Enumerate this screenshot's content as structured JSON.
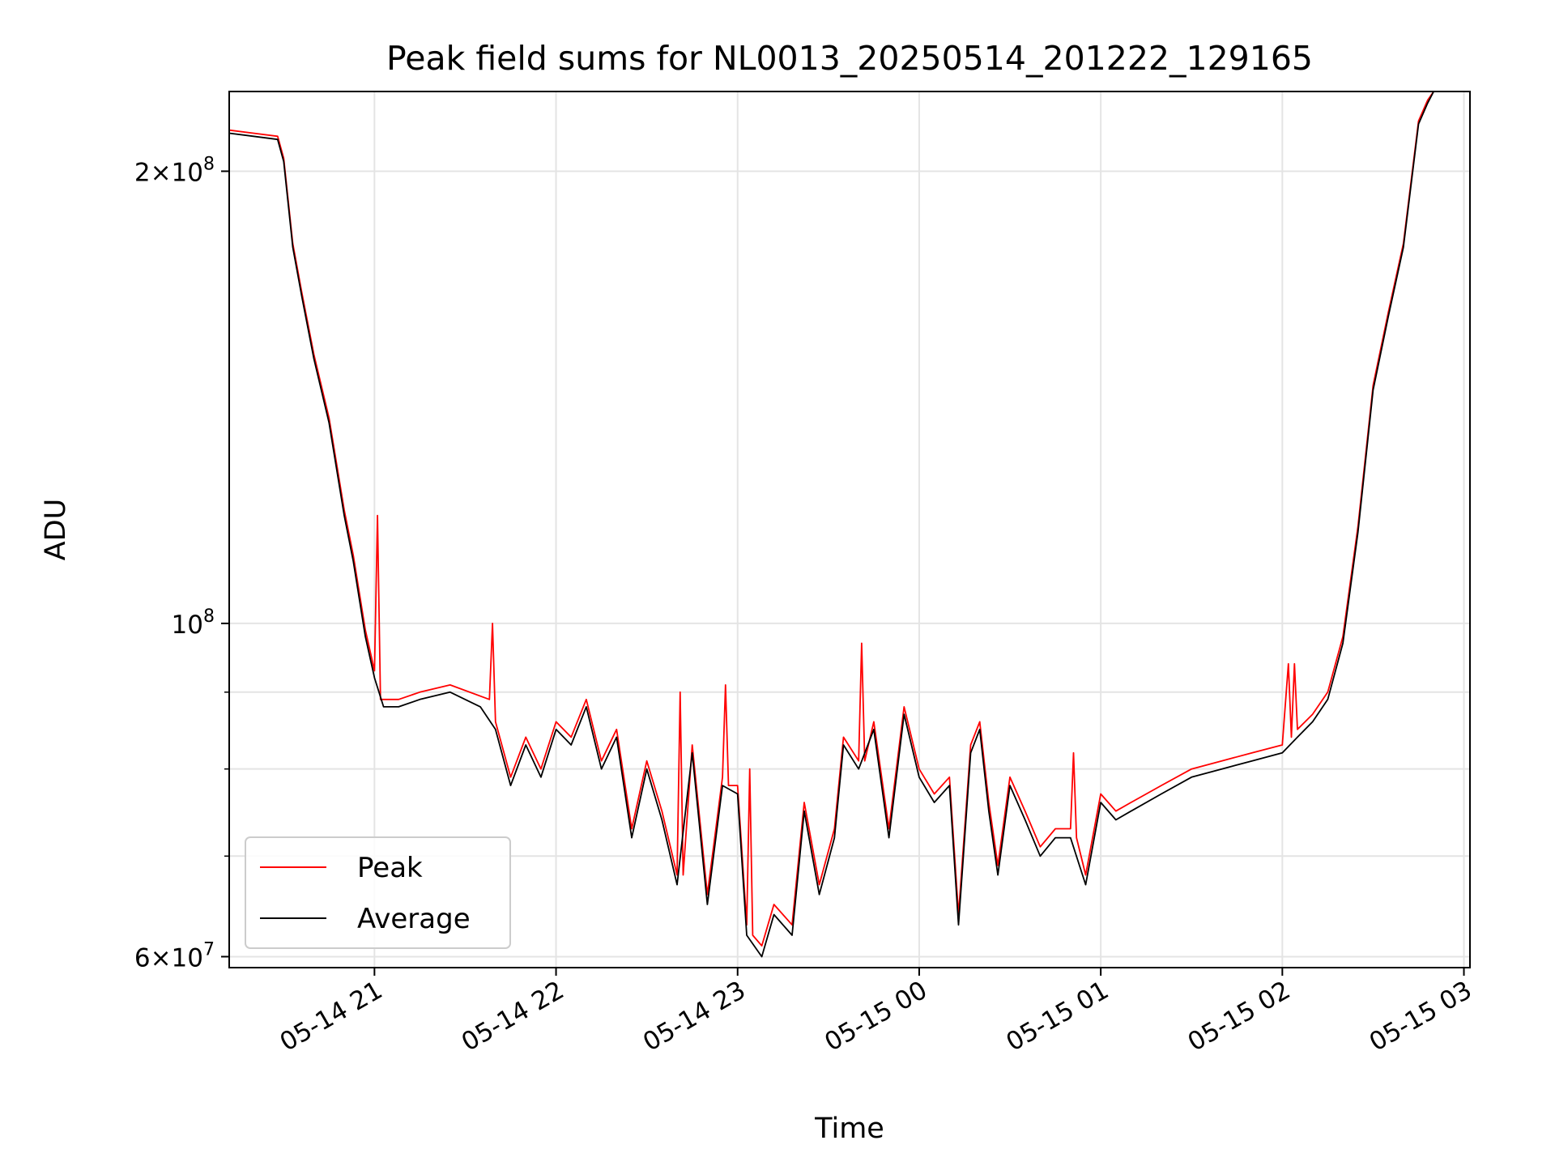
{
  "chart_data": {
    "type": "line",
    "title": "Peak field sums for NL0013_20250514_201222_129165",
    "xlabel": "Time",
    "ylabel": "ADU",
    "y_scale": "log",
    "xlim": [
      "2025-05-14 20:12",
      "2025-05-15 03:02"
    ],
    "ylim": [
      59000000,
      226000000
    ],
    "x_ticks": [
      {
        "x": "2025-05-14 21:00",
        "label": "05-14 21"
      },
      {
        "x": "2025-05-14 22:00",
        "label": "05-14 22"
      },
      {
        "x": "2025-05-14 23:00",
        "label": "05-14 23"
      },
      {
        "x": "2025-05-15 00:00",
        "label": "05-15 00"
      },
      {
        "x": "2025-05-15 01:00",
        "label": "05-15 01"
      },
      {
        "x": "2025-05-15 02:00",
        "label": "05-15 02"
      },
      {
        "x": "2025-05-15 03:00",
        "label": "05-15 03"
      }
    ],
    "y_ticks": [
      {
        "y": 200000000,
        "label": "2×10^8",
        "mantissa": "2",
        "exponent": "8"
      },
      {
        "y": 100000000,
        "label": "10^8",
        "mantissa": "",
        "exponent": "8"
      },
      {
        "y": 60000000,
        "label": "6×10^7",
        "mantissa": "6",
        "exponent": "7"
      }
    ],
    "y_minor_gridlines": [
      90000000,
      80000000,
      70000000
    ],
    "grid": true,
    "legend": {
      "position": "lower-left",
      "entries": [
        "Peak",
        "Average"
      ]
    },
    "series": [
      {
        "name": "Average",
        "color": "#000000",
        "points": [
          [
            "2025-05-14 20:12",
            212000000
          ],
          [
            "2025-05-14 20:20",
            211000000
          ],
          [
            "2025-05-14 20:28",
            210000000
          ],
          [
            "2025-05-14 20:30",
            203000000
          ],
          [
            "2025-05-14 20:33",
            178000000
          ],
          [
            "2025-05-14 20:36",
            165000000
          ],
          [
            "2025-05-14 20:40",
            150000000
          ],
          [
            "2025-05-14 20:45",
            136000000
          ],
          [
            "2025-05-14 20:50",
            118000000
          ],
          [
            "2025-05-14 20:53",
            110000000
          ],
          [
            "2025-05-14 20:57",
            98000000
          ],
          [
            "2025-05-14 21:00",
            92000000
          ],
          [
            "2025-05-14 21:03",
            88000000
          ],
          [
            "2025-05-14 21:08",
            88000000
          ],
          [
            "2025-05-14 21:15",
            89000000
          ],
          [
            "2025-05-14 21:25",
            90000000
          ],
          [
            "2025-05-14 21:35",
            88000000
          ],
          [
            "2025-05-14 21:40",
            85000000
          ],
          [
            "2025-05-14 21:45",
            78000000
          ],
          [
            "2025-05-14 21:50",
            83000000
          ],
          [
            "2025-05-14 21:55",
            79000000
          ],
          [
            "2025-05-14 22:00",
            85000000
          ],
          [
            "2025-05-14 22:05",
            83000000
          ],
          [
            "2025-05-14 22:10",
            88000000
          ],
          [
            "2025-05-14 22:15",
            80000000
          ],
          [
            "2025-05-14 22:20",
            84000000
          ],
          [
            "2025-05-14 22:25",
            72000000
          ],
          [
            "2025-05-14 22:30",
            80000000
          ],
          [
            "2025-05-14 22:35",
            74000000
          ],
          [
            "2025-05-14 22:40",
            67000000
          ],
          [
            "2025-05-14 22:45",
            82000000
          ],
          [
            "2025-05-14 22:50",
            65000000
          ],
          [
            "2025-05-14 22:55",
            78000000
          ],
          [
            "2025-05-14 23:00",
            77000000
          ],
          [
            "2025-05-14 23:03",
            62000000
          ],
          [
            "2025-05-14 23:08",
            60000000
          ],
          [
            "2025-05-14 23:12",
            64000000
          ],
          [
            "2025-05-14 23:18",
            62000000
          ],
          [
            "2025-05-14 23:22",
            75000000
          ],
          [
            "2025-05-14 23:27",
            66000000
          ],
          [
            "2025-05-14 23:32",
            72000000
          ],
          [
            "2025-05-14 23:35",
            83000000
          ],
          [
            "2025-05-14 23:40",
            80000000
          ],
          [
            "2025-05-14 23:45",
            85000000
          ],
          [
            "2025-05-14 23:50",
            72000000
          ],
          [
            "2025-05-14 23:55",
            87000000
          ],
          [
            "2025-05-15 00:00",
            79000000
          ],
          [
            "2025-05-15 00:05",
            76000000
          ],
          [
            "2025-05-15 00:10",
            78000000
          ],
          [
            "2025-05-15 00:13",
            63000000
          ],
          [
            "2025-05-15 00:17",
            82000000
          ],
          [
            "2025-05-15 00:20",
            85000000
          ],
          [
            "2025-05-15 00:23",
            75000000
          ],
          [
            "2025-05-15 00:26",
            68000000
          ],
          [
            "2025-05-15 00:30",
            78000000
          ],
          [
            "2025-05-15 00:35",
            74000000
          ],
          [
            "2025-05-15 00:40",
            70000000
          ],
          [
            "2025-05-15 00:45",
            72000000
          ],
          [
            "2025-05-15 00:50",
            72000000
          ],
          [
            "2025-05-15 00:55",
            67000000
          ],
          [
            "2025-05-15 01:00",
            76000000
          ],
          [
            "2025-05-15 01:05",
            74000000
          ],
          [
            "2025-05-15 01:10",
            75000000
          ],
          [
            "2025-05-15 01:20",
            77000000
          ],
          [
            "2025-05-15 01:30",
            79000000
          ],
          [
            "2025-05-15 01:40",
            80000000
          ],
          [
            "2025-05-15 01:50",
            81000000
          ],
          [
            "2025-05-15 02:00",
            82000000
          ],
          [
            "2025-05-15 02:05",
            84000000
          ],
          [
            "2025-05-15 02:10",
            86000000
          ],
          [
            "2025-05-15 02:15",
            89000000
          ],
          [
            "2025-05-15 02:20",
            97000000
          ],
          [
            "2025-05-15 02:25",
            115000000
          ],
          [
            "2025-05-15 02:30",
            143000000
          ],
          [
            "2025-05-15 02:35",
            160000000
          ],
          [
            "2025-05-15 02:40",
            178000000
          ],
          [
            "2025-05-15 02:45",
            215000000
          ],
          [
            "2025-05-15 02:48",
            222000000
          ],
          [
            "2025-05-15 02:50",
            226000000
          ]
        ]
      },
      {
        "name": "Peak",
        "color": "#ff0000",
        "points": [
          [
            "2025-05-14 20:12",
            213000000
          ],
          [
            "2025-05-14 20:20",
            212000000
          ],
          [
            "2025-05-14 20:28",
            211000000
          ],
          [
            "2025-05-14 20:30",
            204000000
          ],
          [
            "2025-05-14 20:33",
            179000000
          ],
          [
            "2025-05-14 20:36",
            166000000
          ],
          [
            "2025-05-14 20:40",
            151000000
          ],
          [
            "2025-05-14 20:45",
            137000000
          ],
          [
            "2025-05-14 20:50",
            119000000
          ],
          [
            "2025-05-14 20:53",
            111000000
          ],
          [
            "2025-05-14 20:57",
            99000000
          ],
          [
            "2025-05-14 21:00",
            93000000
          ],
          [
            "2025-05-14 21:01",
            118000000
          ],
          [
            "2025-05-14 21:02",
            89000000
          ],
          [
            "2025-05-14 21:08",
            89000000
          ],
          [
            "2025-05-14 21:15",
            90000000
          ],
          [
            "2025-05-14 21:25",
            91000000
          ],
          [
            "2025-05-14 21:38",
            89000000
          ],
          [
            "2025-05-14 21:39",
            100000000
          ],
          [
            "2025-05-14 21:40",
            86000000
          ],
          [
            "2025-05-14 21:45",
            79000000
          ],
          [
            "2025-05-14 21:50",
            84000000
          ],
          [
            "2025-05-14 21:55",
            80000000
          ],
          [
            "2025-05-14 22:00",
            86000000
          ],
          [
            "2025-05-14 22:05",
            84000000
          ],
          [
            "2025-05-14 22:10",
            89000000
          ],
          [
            "2025-05-14 22:15",
            81000000
          ],
          [
            "2025-05-14 22:20",
            85000000
          ],
          [
            "2025-05-14 22:25",
            73000000
          ],
          [
            "2025-05-14 22:30",
            81000000
          ],
          [
            "2025-05-14 22:35",
            75000000
          ],
          [
            "2025-05-14 22:40",
            68000000
          ],
          [
            "2025-05-14 22:41",
            90000000
          ],
          [
            "2025-05-14 22:42",
            68000000
          ],
          [
            "2025-05-14 22:45",
            83000000
          ],
          [
            "2025-05-14 22:50",
            66000000
          ],
          [
            "2025-05-14 22:55",
            79000000
          ],
          [
            "2025-05-14 22:56",
            91000000
          ],
          [
            "2025-05-14 22:57",
            78000000
          ],
          [
            "2025-05-14 23:00",
            78000000
          ],
          [
            "2025-05-14 23:03",
            63000000
          ],
          [
            "2025-05-14 23:04",
            80000000
          ],
          [
            "2025-05-14 23:05",
            62000000
          ],
          [
            "2025-05-14 23:08",
            61000000
          ],
          [
            "2025-05-14 23:12",
            65000000
          ],
          [
            "2025-05-14 23:18",
            63000000
          ],
          [
            "2025-05-14 23:22",
            76000000
          ],
          [
            "2025-05-14 23:27",
            67000000
          ],
          [
            "2025-05-14 23:32",
            73000000
          ],
          [
            "2025-05-14 23:35",
            84000000
          ],
          [
            "2025-05-14 23:40",
            81000000
          ],
          [
            "2025-05-14 23:41",
            97000000
          ],
          [
            "2025-05-14 23:42",
            81000000
          ],
          [
            "2025-05-14 23:45",
            86000000
          ],
          [
            "2025-05-14 23:50",
            73000000
          ],
          [
            "2025-05-14 23:55",
            88000000
          ],
          [
            "2025-05-15 00:00",
            80000000
          ],
          [
            "2025-05-15 00:05",
            77000000
          ],
          [
            "2025-05-15 00:10",
            79000000
          ],
          [
            "2025-05-15 00:13",
            64000000
          ],
          [
            "2025-05-15 00:17",
            83000000
          ],
          [
            "2025-05-15 00:20",
            86000000
          ],
          [
            "2025-05-15 00:23",
            76000000
          ],
          [
            "2025-05-15 00:26",
            69000000
          ],
          [
            "2025-05-15 00:30",
            79000000
          ],
          [
            "2025-05-15 00:35",
            75000000
          ],
          [
            "2025-05-15 00:40",
            71000000
          ],
          [
            "2025-05-15 00:45",
            73000000
          ],
          [
            "2025-05-15 00:50",
            73000000
          ],
          [
            "2025-05-15 00:51",
            82000000
          ],
          [
            "2025-05-15 00:52",
            72000000
          ],
          [
            "2025-05-15 00:55",
            68000000
          ],
          [
            "2025-05-15 01:00",
            77000000
          ],
          [
            "2025-05-15 01:05",
            75000000
          ],
          [
            "2025-05-15 01:10",
            76000000
          ],
          [
            "2025-05-15 01:20",
            78000000
          ],
          [
            "2025-05-15 01:30",
            80000000
          ],
          [
            "2025-05-15 01:40",
            81000000
          ],
          [
            "2025-05-15 01:50",
            82000000
          ],
          [
            "2025-05-15 02:00",
            83000000
          ],
          [
            "2025-05-15 02:02",
            94000000
          ],
          [
            "2025-05-15 02:03",
            84000000
          ],
          [
            "2025-05-15 02:04",
            94000000
          ],
          [
            "2025-05-15 02:05",
            85000000
          ],
          [
            "2025-05-15 02:10",
            87000000
          ],
          [
            "2025-05-15 02:15",
            90000000
          ],
          [
            "2025-05-15 02:20",
            98000000
          ],
          [
            "2025-05-15 02:25",
            116000000
          ],
          [
            "2025-05-15 02:30",
            144000000
          ],
          [
            "2025-05-15 02:35",
            161000000
          ],
          [
            "2025-05-15 02:40",
            179000000
          ],
          [
            "2025-05-15 02:45",
            216000000
          ],
          [
            "2025-05-15 02:48",
            223000000
          ],
          [
            "2025-05-15 02:50",
            226000000
          ]
        ]
      }
    ]
  }
}
